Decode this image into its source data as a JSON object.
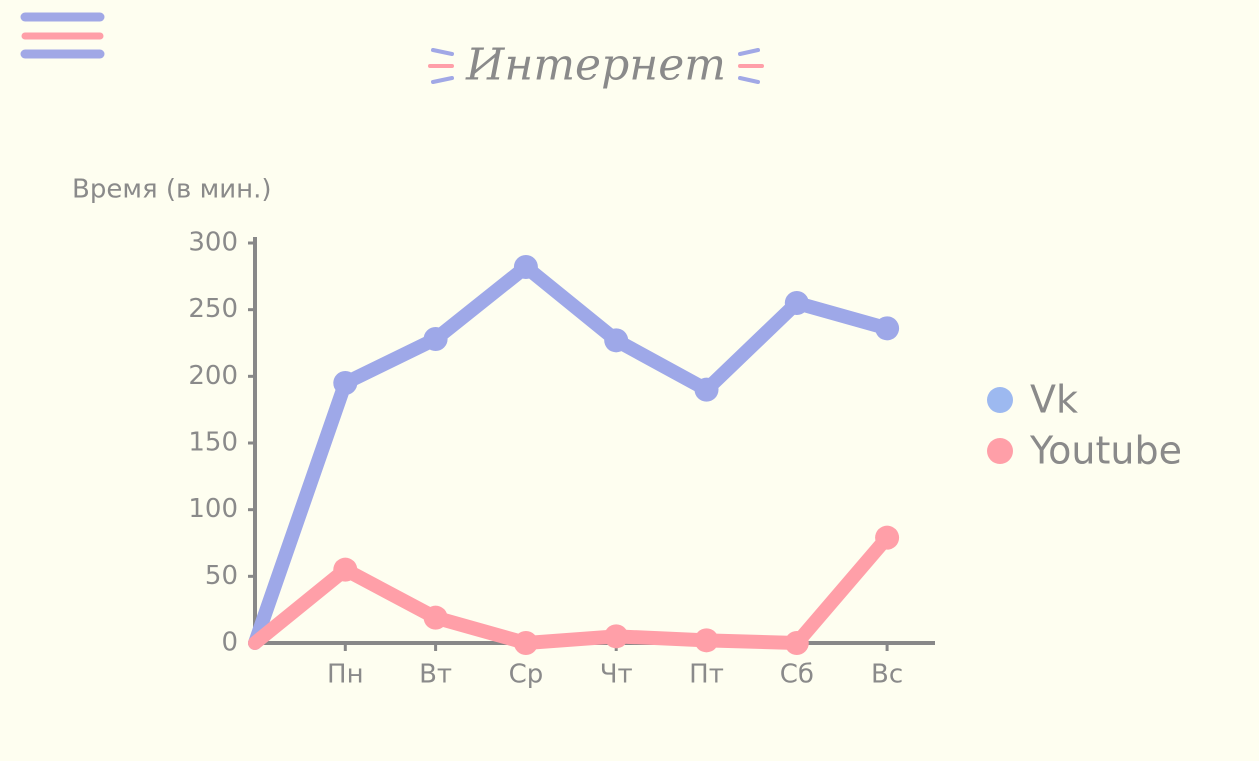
{
  "header": {
    "title": "Интернет"
  },
  "chart_data": {
    "type": "line",
    "ylabel": "Время (в мин.)",
    "categories": [
      null,
      "Пн",
      "Вт",
      "Ср",
      "Чт",
      "Пт",
      "Сб",
      "Вс"
    ],
    "series": [
      {
        "name": "Vk",
        "color": "#9ea8e8",
        "legend_color": "#9db9f0",
        "values": [
          0,
          195,
          228,
          282,
          227,
          190,
          255,
          236
        ]
      },
      {
        "name": "Youtube",
        "color": "#ff9fa8",
        "legend_color": "#ff9fa8",
        "values": [
          0,
          55,
          19,
          0,
          5,
          2,
          0,
          79
        ]
      }
    ],
    "ylim": [
      0,
      300
    ],
    "yticks": [
      0,
      50,
      100,
      150,
      200,
      250,
      300
    ],
    "grid": false,
    "legend": "right"
  }
}
